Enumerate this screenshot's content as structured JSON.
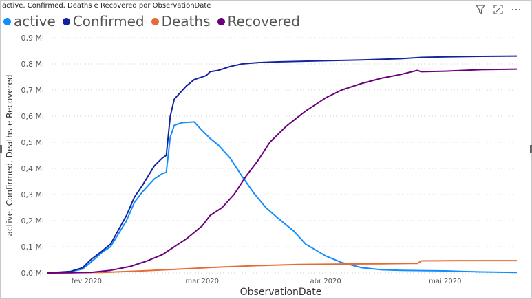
{
  "visual": {
    "title": "active, Confirmed, Deaths e Recovered por ObservationDate",
    "toolbar": [
      {
        "name": "filter-icon"
      },
      {
        "name": "focus-mode-icon"
      },
      {
        "name": "more-options-icon"
      }
    ]
  },
  "chart_data": {
    "type": "line",
    "xlabel": "ObservationDate",
    "ylabel": "active, Confirmed, Deaths e Recovered",
    "x_ticks": [
      "fev 2020",
      "mar 2020",
      "abr 2020",
      "mai 2020"
    ],
    "y_ticks": [
      "0,0 Mi",
      "0,1 Mi",
      "0,2 Mi",
      "0,3 Mi",
      "0,4 Mi",
      "0,5 Mi",
      "0,6 Mi",
      "0,7 Mi",
      "0,8 Mi",
      "0,9 Mi"
    ],
    "ylim": [
      0,
      0.9
    ],
    "y_unit": "Mi",
    "x_range": [
      "2020-01-22",
      "2020-05-19"
    ],
    "legend_position": "top-left",
    "grid": "horizontal dotted",
    "series": [
      {
        "name": "active",
        "color": "#118DFF",
        "points": [
          [
            "2020-01-22",
            0.0005
          ],
          [
            "2020-01-25",
            0.002
          ],
          [
            "2020-01-28",
            0.005
          ],
          [
            "2020-01-31",
            0.015
          ],
          [
            "2020-02-02",
            0.04
          ],
          [
            "2020-02-05",
            0.08
          ],
          [
            "2020-02-07",
            0.1
          ],
          [
            "2020-02-09",
            0.15
          ],
          [
            "2020-02-11",
            0.2
          ],
          [
            "2020-02-13",
            0.27
          ],
          [
            "2020-02-15",
            0.31
          ],
          [
            "2020-02-18",
            0.36
          ],
          [
            "2020-02-20",
            0.38
          ],
          [
            "2020-02-21",
            0.385
          ],
          [
            "2020-02-22",
            0.52
          ],
          [
            "2020-02-23",
            0.565
          ],
          [
            "2020-02-25",
            0.575
          ],
          [
            "2020-02-28",
            0.578
          ],
          [
            "2020-03-01",
            0.545
          ],
          [
            "2020-03-03",
            0.515
          ],
          [
            "2020-03-05",
            0.49
          ],
          [
            "2020-03-08",
            0.44
          ],
          [
            "2020-03-11",
            0.37
          ],
          [
            "2020-03-14",
            0.305
          ],
          [
            "2020-03-17",
            0.25
          ],
          [
            "2020-03-20",
            0.21
          ],
          [
            "2020-03-24",
            0.16
          ],
          [
            "2020-03-27",
            0.11
          ],
          [
            "2020-04-01",
            0.065
          ],
          [
            "2020-04-05",
            0.04
          ],
          [
            "2020-04-10",
            0.02
          ],
          [
            "2020-04-15",
            0.012
          ],
          [
            "2020-04-20",
            0.01
          ],
          [
            "2020-04-25",
            0.009
          ],
          [
            "2020-05-01",
            0.008
          ],
          [
            "2020-05-05",
            0.006
          ],
          [
            "2020-05-10",
            0.004
          ],
          [
            "2020-05-19",
            0.002
          ]
        ]
      },
      {
        "name": "Confirmed",
        "color": "#12239E",
        "points": [
          [
            "2020-01-22",
            0.0006
          ],
          [
            "2020-01-25",
            0.003
          ],
          [
            "2020-01-28",
            0.006
          ],
          [
            "2020-01-31",
            0.02
          ],
          [
            "2020-02-02",
            0.05
          ],
          [
            "2020-02-05",
            0.085
          ],
          [
            "2020-02-07",
            0.11
          ],
          [
            "2020-02-09",
            0.165
          ],
          [
            "2020-02-11",
            0.22
          ],
          [
            "2020-02-13",
            0.29
          ],
          [
            "2020-02-15",
            0.335
          ],
          [
            "2020-02-18",
            0.41
          ],
          [
            "2020-02-20",
            0.44
          ],
          [
            "2020-02-21",
            0.45
          ],
          [
            "2020-02-22",
            0.6
          ],
          [
            "2020-02-23",
            0.665
          ],
          [
            "2020-02-26",
            0.715
          ],
          [
            "2020-02-28",
            0.74
          ],
          [
            "2020-03-02",
            0.755
          ],
          [
            "2020-03-03",
            0.77
          ],
          [
            "2020-03-05",
            0.775
          ],
          [
            "2020-03-08",
            0.79
          ],
          [
            "2020-03-11",
            0.8
          ],
          [
            "2020-03-15",
            0.805
          ],
          [
            "2020-03-20",
            0.808
          ],
          [
            "2020-04-01",
            0.812
          ],
          [
            "2020-04-10",
            0.815
          ],
          [
            "2020-04-20",
            0.82
          ],
          [
            "2020-04-25",
            0.825
          ],
          [
            "2020-05-01",
            0.827
          ],
          [
            "2020-05-10",
            0.829
          ],
          [
            "2020-05-19",
            0.83
          ]
        ]
      },
      {
        "name": "Deaths",
        "color": "#E66C37",
        "points": [
          [
            "2020-01-22",
            0.0
          ],
          [
            "2020-02-05",
            0.002
          ],
          [
            "2020-02-15",
            0.008
          ],
          [
            "2020-02-25",
            0.015
          ],
          [
            "2020-03-05",
            0.022
          ],
          [
            "2020-03-15",
            0.028
          ],
          [
            "2020-03-25",
            0.032
          ],
          [
            "2020-04-05",
            0.034
          ],
          [
            "2020-04-15",
            0.035
          ],
          [
            "2020-04-22",
            0.036
          ],
          [
            "2020-04-24",
            0.036
          ],
          [
            "2020-04-25",
            0.046
          ],
          [
            "2020-05-05",
            0.047
          ],
          [
            "2020-05-19",
            0.047
          ]
        ]
      },
      {
        "name": "Recovered",
        "color": "#6B007B",
        "points": [
          [
            "2020-01-22",
            0.0
          ],
          [
            "2020-01-28",
            0.0005
          ],
          [
            "2020-02-02",
            0.002
          ],
          [
            "2020-02-07",
            0.01
          ],
          [
            "2020-02-12",
            0.025
          ],
          [
            "2020-02-16",
            0.045
          ],
          [
            "2020-02-20",
            0.07
          ],
          [
            "2020-02-23",
            0.1
          ],
          [
            "2020-02-26",
            0.13
          ],
          [
            "2020-03-01",
            0.18
          ],
          [
            "2020-03-03",
            0.22
          ],
          [
            "2020-03-06",
            0.25
          ],
          [
            "2020-03-09",
            0.3
          ],
          [
            "2020-03-12",
            0.37
          ],
          [
            "2020-03-15",
            0.43
          ],
          [
            "2020-03-18",
            0.5
          ],
          [
            "2020-03-22",
            0.56
          ],
          [
            "2020-03-27",
            0.62
          ],
          [
            "2020-04-01",
            0.67
          ],
          [
            "2020-04-05",
            0.7
          ],
          [
            "2020-04-10",
            0.725
          ],
          [
            "2020-04-15",
            0.745
          ],
          [
            "2020-04-20",
            0.76
          ],
          [
            "2020-04-24",
            0.775
          ],
          [
            "2020-04-25",
            0.77
          ],
          [
            "2020-05-01",
            0.772
          ],
          [
            "2020-05-10",
            0.778
          ],
          [
            "2020-05-19",
            0.78
          ]
        ]
      }
    ]
  }
}
